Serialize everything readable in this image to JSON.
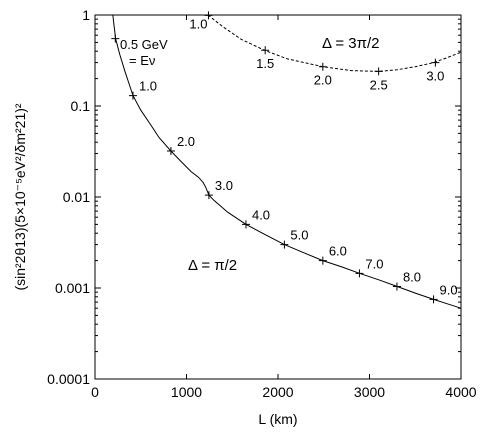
{
  "chart_data": {
    "type": "line",
    "xlabel": "L (km)",
    "ylabel": "(sin²2θ13)(5×10⁻⁵eV²/δm²21)²",
    "xlim": [
      0,
      4000
    ],
    "ylim": [
      0.0001,
      1
    ],
    "yscale": "log",
    "xticks": [
      "0",
      "1000",
      "2000",
      "3000",
      "4000"
    ],
    "yticks": [
      "0.0001",
      "0.001",
      "0.01",
      "0.1",
      "1"
    ],
    "annotation_lines": [
      "0.5 GeV",
      "= Eν"
    ],
    "series": [
      {
        "name": "Δ = π/2",
        "style": "solid",
        "color": "#000000",
        "curve": [
          [
            195,
            1.0
          ],
          [
            225,
            0.55
          ],
          [
            270,
            0.37
          ],
          [
            330,
            0.235
          ],
          [
            415,
            0.13
          ],
          [
            500,
            0.09
          ],
          [
            600,
            0.064
          ],
          [
            700,
            0.045
          ],
          [
            830,
            0.032
          ],
          [
            950,
            0.024
          ],
          [
            1050,
            0.019
          ],
          [
            1130,
            0.0165
          ],
          [
            1180,
            0.0145
          ],
          [
            1210,
            0.0128
          ],
          [
            1245,
            0.0105
          ],
          [
            1300,
            0.0092
          ],
          [
            1450,
            0.0068
          ],
          [
            1650,
            0.005
          ],
          [
            1850,
            0.0039
          ],
          [
            2070,
            0.003
          ],
          [
            2300,
            0.0024
          ],
          [
            2490,
            0.002
          ],
          [
            2700,
            0.0017
          ],
          [
            2890,
            0.00145
          ],
          [
            3100,
            0.00123
          ],
          [
            3300,
            0.00104
          ],
          [
            3500,
            0.00088
          ],
          [
            3700,
            0.00075
          ],
          [
            3850,
            0.00067
          ],
          [
            4000,
            0.0006
          ]
        ],
        "marks": [
          {
            "label": "1.0",
            "x": 415,
            "y": 0.13
          },
          {
            "label": "2.0",
            "x": 830,
            "y": 0.032
          },
          {
            "label": "3.0",
            "x": 1245,
            "y": 0.0105
          },
          {
            "label": "4.0",
            "x": 1650,
            "y": 0.005
          },
          {
            "label": "5.0",
            "x": 2070,
            "y": 0.003
          },
          {
            "label": "6.0",
            "x": 2490,
            "y": 0.002
          },
          {
            "label": "7.0",
            "x": 2890,
            "y": 0.00145
          },
          {
            "label": "8.0",
            "x": 3300,
            "y": 0.00104
          },
          {
            "label": "9.0",
            "x": 3700,
            "y": 0.00075
          }
        ],
        "extra_tick": {
          "x": 222,
          "y": 0.55
        }
      },
      {
        "name": "Δ = 3π/2",
        "style": "dashed",
        "color": "#000000",
        "curve": [
          [
            1235,
            1.0
          ],
          [
            1400,
            0.74
          ],
          [
            1600,
            0.54
          ],
          [
            1850,
            0.41
          ],
          [
            2100,
            0.33
          ],
          [
            2490,
            0.27
          ],
          [
            2800,
            0.245
          ],
          [
            3100,
            0.24
          ],
          [
            3300,
            0.25
          ],
          [
            3500,
            0.27
          ],
          [
            3700,
            0.3
          ],
          [
            3850,
            0.34
          ],
          [
            4000,
            0.39
          ]
        ],
        "marks": [
          {
            "label": "1.0",
            "x": 1240,
            "y": 0.99
          },
          {
            "label": "1.5",
            "x": 1860,
            "y": 0.41
          },
          {
            "label": "2.0",
            "x": 2490,
            "y": 0.27
          },
          {
            "label": "2.5",
            "x": 3100,
            "y": 0.24
          },
          {
            "label": "3.0",
            "x": 3720,
            "y": 0.3
          }
        ]
      }
    ]
  }
}
